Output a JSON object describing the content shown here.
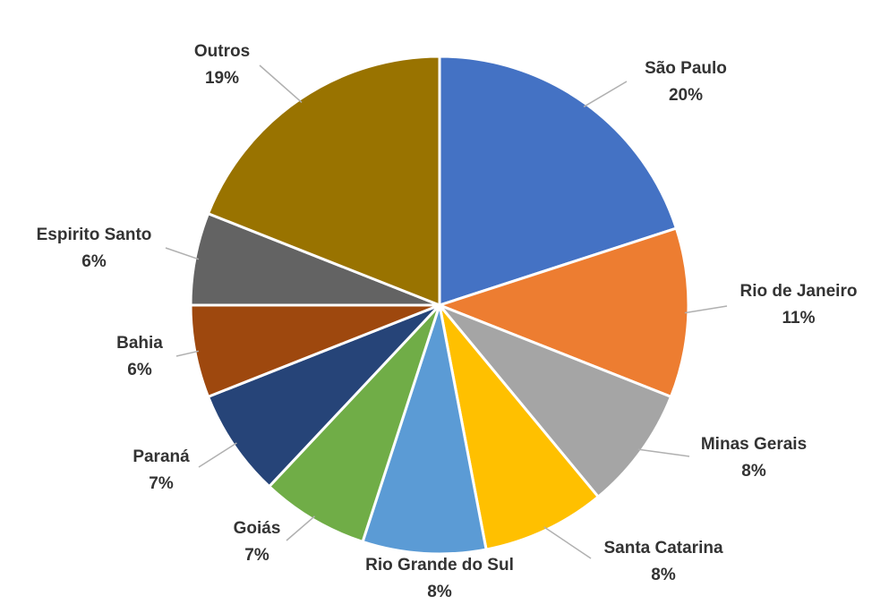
{
  "chart_data": {
    "type": "pie",
    "slices": [
      {
        "label": "São Paulo",
        "pct_label": "20%",
        "value": 20,
        "color": "#4472C4"
      },
      {
        "label": "Rio de Janeiro",
        "pct_label": "11%",
        "value": 11,
        "color": "#ED7D31"
      },
      {
        "label": "Minas Gerais",
        "pct_label": "8%",
        "value": 8,
        "color": "#A5A5A5"
      },
      {
        "label": "Santa Catarina",
        "pct_label": "8%",
        "value": 8,
        "color": "#FFC000"
      },
      {
        "label": "Rio Grande do Sul",
        "pct_label": "8%",
        "value": 8,
        "color": "#5B9BD5"
      },
      {
        "label": "Goiás",
        "pct_label": "7%",
        "value": 7,
        "color": "#70AD47"
      },
      {
        "label": "Paraná",
        "pct_label": "7%",
        "value": 7,
        "color": "#264478"
      },
      {
        "label": "Bahia",
        "pct_label": "6%",
        "value": 6,
        "color": "#9E480E"
      },
      {
        "label": "Espirito Santo",
        "pct_label": "6%",
        "value": 6,
        "color": "#636363"
      },
      {
        "label": "Outros",
        "pct_label": "19%",
        "value": 19,
        "color": "#997300"
      }
    ]
  }
}
